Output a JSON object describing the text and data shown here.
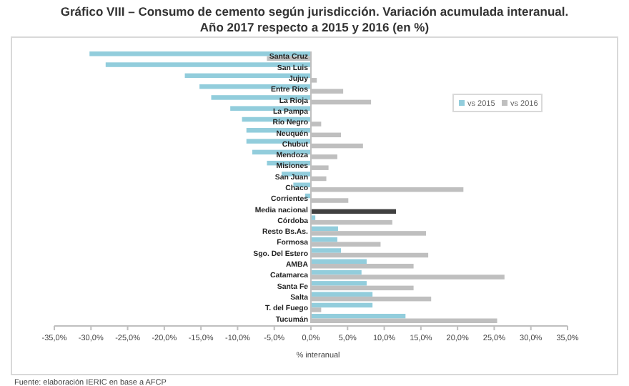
{
  "chart_data": {
    "type": "bar",
    "orientation": "horizontal",
    "title": "Gráfico VIII – Consumo de cemento según jurisdicción. Variación acumulada interanual.\nAño 2017 respecto a 2015 y 2016 (en %)",
    "xlabel": "% interanual",
    "categories": [
      "Santa Cruz",
      "San Luis",
      "Jujuy",
      "Entre Ríos",
      "La Rioja",
      "La Pampa",
      "Río Negro",
      "Neuquén",
      "Chubut",
      "Mendoza",
      "Misiones",
      "San Juan",
      "Chaco",
      "Corrientes",
      "Media nacional",
      "Córdoba",
      "Resto Bs.As.",
      "Formosa",
      "Sgo. Del Estero",
      "AMBA",
      "Catamarca",
      "Santa Fe",
      "Salta",
      "T. del Fuego",
      "Tucumán"
    ],
    "series": [
      {
        "name": "vs 2015",
        "color": "#92cddc",
        "values": [
          -30.2,
          -28,
          -17.2,
          -15.2,
          -13.6,
          -11,
          -9.4,
          -8.8,
          -8.8,
          -8,
          -6,
          -4,
          -2.4,
          -0.8,
          null,
          0.6,
          3.7,
          3.6,
          4.1,
          7.6,
          6.9,
          7.6,
          8.4,
          8.4,
          12.9
        ]
      },
      {
        "name": "vs 2016",
        "color": "#bfbfbf",
        "colors": [
          "#bfbfbf",
          null,
          "#bfbfbf",
          "#bfbfbf",
          "#bfbfbf",
          null,
          "#bfbfbf",
          "#bfbfbf",
          "#bfbfbf",
          "#bfbfbf",
          "#bfbfbf",
          "#bfbfbf",
          "#bfbfbf",
          "#bfbfbf",
          "#404040",
          "#bfbfbf",
          "#bfbfbf",
          "#bfbfbf",
          "#bfbfbf",
          "#bfbfbf",
          "#bfbfbf",
          "#bfbfbf",
          "#bfbfbf",
          "#bfbfbf",
          "#bfbfbf"
        ],
        "values": [
          -6,
          null,
          0.8,
          4.4,
          8.2,
          null,
          1.4,
          4.1,
          7.1,
          3.6,
          2.4,
          2.1,
          20.8,
          5.1,
          11.6,
          11.1,
          15.7,
          9.5,
          16,
          14,
          26.4,
          14,
          16.4,
          1.4,
          25.4
        ]
      }
    ],
    "xlim": [
      -35,
      35
    ],
    "xticks": [
      {
        "value": -35,
        "label": "-35,0%"
      },
      {
        "value": -30,
        "label": "-30,0%"
      },
      {
        "value": -25,
        "label": "-25,0%"
      },
      {
        "value": -20,
        "label": "-20,0%"
      },
      {
        "value": -15,
        "label": "-15,0%"
      },
      {
        "value": -10,
        "label": "-10,0%"
      },
      {
        "value": -5,
        "label": "-5,0%"
      },
      {
        "value": 0,
        "label": "0,0%"
      },
      {
        "value": 5,
        "label": "5,0%"
      },
      {
        "value": 10,
        "label": "10,0%"
      },
      {
        "value": 15,
        "label": "15,0%"
      },
      {
        "value": 20,
        "label": "20,0%"
      },
      {
        "value": 25,
        "label": "25,0%"
      },
      {
        "value": 30,
        "label": "30,0%"
      },
      {
        "value": 35,
        "label": "35,0%"
      }
    ],
    "legend": "right",
    "grid": false,
    "annotations": [
      "Fuente: elaboración IERIC en base a AFCP"
    ]
  }
}
